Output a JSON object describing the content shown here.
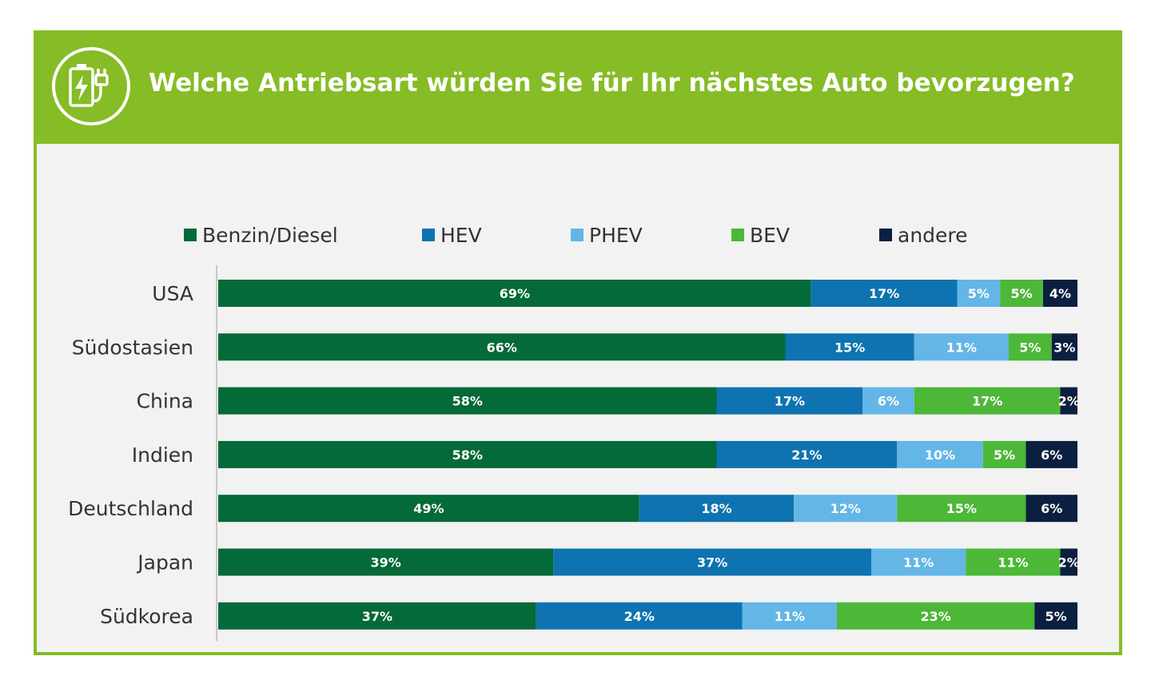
{
  "chart_data": {
    "type": "bar",
    "orientation": "horizontal",
    "stacked": true,
    "title": "Welche Antriebsart würden Sie für Ihr nächstes Auto bevorzugen?",
    "categories": [
      "USA",
      "Südostasien",
      "China",
      "Indien",
      "Deutschland",
      "Japan",
      "Südkorea"
    ],
    "series": [
      {
        "name": "Benzin/Diesel",
        "color": "#046a38",
        "values": [
          69,
          66,
          58,
          58,
          49,
          39,
          37
        ]
      },
      {
        "name": "HEV",
        "color": "#0e73b0",
        "values": [
          17,
          15,
          17,
          21,
          18,
          37,
          24
        ]
      },
      {
        "name": "PHEV",
        "color": "#63b6e6",
        "values": [
          5,
          11,
          6,
          10,
          12,
          11,
          11
        ]
      },
      {
        "name": "BEV",
        "color": "#4db738",
        "values": [
          5,
          5,
          17,
          5,
          15,
          11,
          23
        ]
      },
      {
        "name": "andere",
        "color": "#0b1f40",
        "values": [
          4,
          3,
          2,
          6,
          6,
          2,
          5
        ]
      }
    ],
    "value_suffix": "%",
    "legend_position": "top",
    "grid": false
  }
}
